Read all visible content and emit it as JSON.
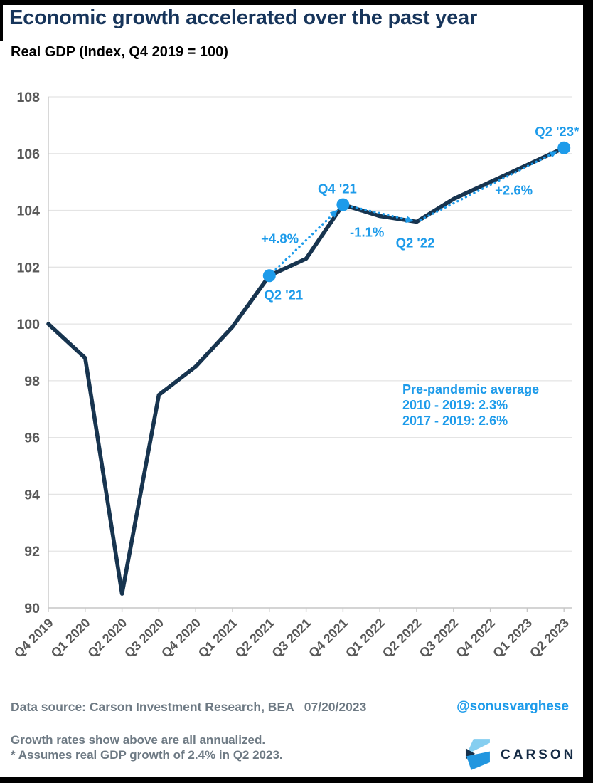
{
  "header": {
    "title": "Economic growth accelerated over the past year",
    "subtitle": "Real GDP (Index, Q4 2019 = 100)"
  },
  "chart_data": {
    "type": "line",
    "title": "Economic growth accelerated over the past year",
    "ylabel": "Real GDP (Index, Q4 2019 = 100)",
    "xlabel": "",
    "categories": [
      "Q4 2019",
      "Q1 2020",
      "Q2 2020",
      "Q3 2020",
      "Q4 2020",
      "Q1 2021",
      "Q2 2021",
      "Q3 2021",
      "Q4 2021",
      "Q1 2022",
      "Q2 2022",
      "Q3 2022",
      "Q4 2022",
      "Q1 2023",
      "Q2 2023"
    ],
    "values": [
      100.0,
      98.8,
      90.5,
      97.5,
      98.5,
      99.9,
      101.7,
      102.3,
      104.2,
      103.8,
      103.6,
      104.4,
      105.0,
      105.6,
      106.2
    ],
    "ylim": [
      90,
      108
    ],
    "yticks": [
      108,
      106,
      104,
      102,
      100,
      98,
      96,
      94,
      92,
      90
    ],
    "grid": "horizontal",
    "legend": "none",
    "line_color": "#17344F",
    "accent_color": "#1D9BEA",
    "grid_color": "#E4E4E4",
    "spine_color": "#C8C8C8",
    "tick_label_color": "#595959",
    "highlight_points": [
      {
        "category": "Q2 2021",
        "label": "Q2 '21",
        "marker": true
      },
      {
        "category": "Q4 2021",
        "label": "Q4 '21",
        "marker": true
      },
      {
        "category": "Q2 2022",
        "label": "Q2 '22",
        "marker": false
      },
      {
        "category": "Q2 2023",
        "label": "Q2 '23*",
        "marker": true
      }
    ],
    "growth_segments": [
      {
        "from": "Q2 2021",
        "to": "Q4 2021",
        "label": "+4.8%"
      },
      {
        "from": "Q4 2021",
        "to": "Q2 2022",
        "label": "-1.1%"
      },
      {
        "from": "Q2 2022",
        "to": "Q2 2023",
        "label": "+2.6%"
      }
    ],
    "annotation": {
      "line1": "Pre-pandemic average",
      "line2": "2010 - 2019: 2.3%",
      "line3": "2017 - 2019: 2.6%"
    }
  },
  "footer": {
    "source": "Data source: Carson Investment Research, BEA",
    "date": "07/20/2023",
    "handle": "@sonusvarghese",
    "note1": "Growth rates show above are all annualized.",
    "note2": "* Assumes real GDP growth of 2.4% in Q2 2023.",
    "logo_text": "CARSON"
  },
  "colors": {
    "title_navy": "#17355B",
    "series_navy": "#17344F",
    "accent_blue": "#1D9BEA",
    "axis_gray": "#595959",
    "footer_gray": "#6E7A84",
    "logo_light_blue": "#85CEF0",
    "logo_mid_blue": "#2196DF",
    "logo_navy": "#16304A"
  }
}
